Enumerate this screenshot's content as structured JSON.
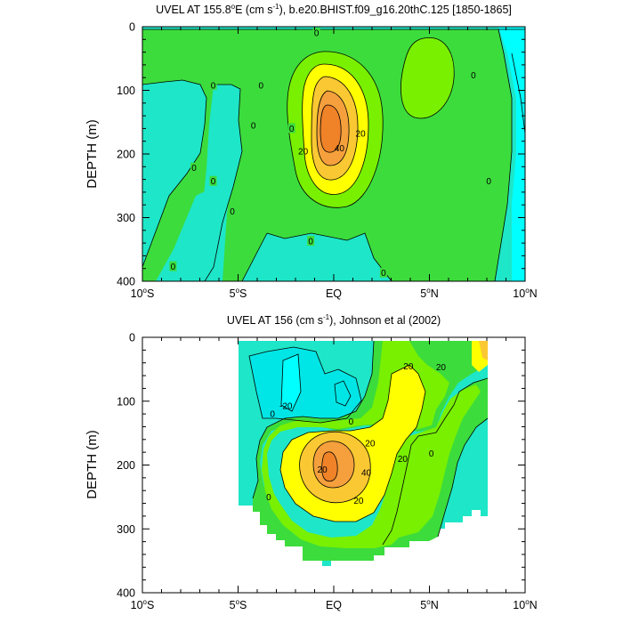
{
  "colors": {
    "lt_-20": "#00ffff",
    "-20_-10": "#00e6e6",
    "-10_0": "#1ee6c8",
    "0_10": "#3cdc3c",
    "10_20": "#78f000",
    "20_30": "#ffff00",
    "30_40": "#fac832",
    "40_50": "#f5a03c",
    "gt_50": "#f08228",
    "line": "#000000",
    "missing": "#ffffff"
  },
  "chart_data": [
    {
      "type": "contour",
      "title_prefix": "UVEL AT 155.8",
      "title_sup1": "o",
      "title_mid": "E (cm s",
      "title_sup2": "-1",
      "title_suffix": "), b.e20.BHIST.f09_g16.20thC.125 [1850-1865]",
      "ylabel": "DEPTH (m)",
      "xlim": [
        -10,
        10
      ],
      "ylim": [
        0,
        400
      ],
      "y_reversed": true,
      "xticks": [
        {
          "value": -10,
          "label": "10",
          "sup": "o",
          "hemi": "S"
        },
        {
          "value": -5,
          "label": "5",
          "sup": "o",
          "hemi": "S"
        },
        {
          "value": 0,
          "label": "EQ",
          "sup": "",
          "hemi": ""
        },
        {
          "value": 5,
          "label": "5",
          "sup": "o",
          "hemi": "N"
        },
        {
          "value": 10,
          "label": "10",
          "sup": "o",
          "hemi": "N"
        }
      ],
      "yticks": [
        {
          "value": 0,
          "label": "0"
        },
        {
          "value": 100,
          "label": "100"
        },
        {
          "value": 200,
          "label": "200"
        },
        {
          "value": 300,
          "label": "300"
        },
        {
          "value": 400,
          "label": "400"
        }
      ],
      "contour_levels": [
        -20,
        -10,
        0,
        10,
        20,
        30,
        40,
        50
      ],
      "contour_labels": [
        {
          "x": -0.9,
          "y": 10,
          "text": "0"
        },
        {
          "x": -6.3,
          "y": 92,
          "text": "0"
        },
        {
          "x": -3.8,
          "y": 92,
          "text": "0"
        },
        {
          "x": -4.2,
          "y": 155,
          "text": "0"
        },
        {
          "x": -2.2,
          "y": 160,
          "text": "0"
        },
        {
          "x": -7.3,
          "y": 222,
          "text": "0"
        },
        {
          "x": -6.3,
          "y": 243,
          "text": "0"
        },
        {
          "x": -5.3,
          "y": 290,
          "text": "0"
        },
        {
          "x": -1.2,
          "y": 337,
          "text": "0"
        },
        {
          "x": 2.6,
          "y": 387,
          "text": "0"
        },
        {
          "x": -8.4,
          "y": 377,
          "text": "0"
        },
        {
          "x": 7.3,
          "y": 76,
          "text": "0"
        },
        {
          "x": 8.1,
          "y": 243,
          "text": "0"
        },
        {
          "x": 1.4,
          "y": 168,
          "text": "20"
        },
        {
          "x": -1.6,
          "y": 196,
          "text": "20"
        },
        {
          "x": 0.3,
          "y": 191,
          "text": "40"
        }
      ]
    },
    {
      "type": "contour",
      "title_prefix": "UVEL AT 156 (cm s",
      "title_sup1": "",
      "title_mid": "",
      "title_sup2": "-1",
      "title_suffix": "), Johnson et al (2002)",
      "ylabel": "DEPTH (m)",
      "xlim": [
        -10,
        10
      ],
      "ylim": [
        0,
        400
      ],
      "y_reversed": true,
      "xticks": [
        {
          "value": -10,
          "label": "10",
          "sup": "o",
          "hemi": "S"
        },
        {
          "value": -5,
          "label": "5",
          "sup": "o",
          "hemi": "S"
        },
        {
          "value": 0,
          "label": "EQ",
          "sup": "",
          "hemi": ""
        },
        {
          "value": 5,
          "label": "5",
          "sup": "o",
          "hemi": "N"
        },
        {
          "value": 10,
          "label": "10",
          "sup": "o",
          "hemi": "N"
        }
      ],
      "yticks": [
        {
          "value": 0,
          "label": "0"
        },
        {
          "value": 100,
          "label": "100"
        },
        {
          "value": 200,
          "label": "200"
        },
        {
          "value": 300,
          "label": "300"
        },
        {
          "value": 400,
          "label": "400"
        }
      ],
      "data_extent_x": [
        -5,
        8
      ],
      "contour_levels": [
        -20,
        -10,
        0,
        10,
        20,
        30,
        40,
        50
      ],
      "contour_labels": [
        {
          "x": -2.5,
          "y": 107,
          "text": "-20"
        },
        {
          "x": -3.2,
          "y": 120,
          "text": "0"
        },
        {
          "x": 0.9,
          "y": 132,
          "text": "0"
        },
        {
          "x": 1.9,
          "y": 166,
          "text": "20"
        },
        {
          "x": 3.9,
          "y": 45,
          "text": "20"
        },
        {
          "x": 5.6,
          "y": 47,
          "text": "20"
        },
        {
          "x": 3.6,
          "y": 190,
          "text": "20"
        },
        {
          "x": 5.1,
          "y": 182,
          "text": "0"
        },
        {
          "x": -0.6,
          "y": 207,
          "text": "20"
        },
        {
          "x": 1.7,
          "y": 212,
          "text": "40"
        },
        {
          "x": 1.3,
          "y": 256,
          "text": "20"
        },
        {
          "x": -3.4,
          "y": 250,
          "text": "0"
        }
      ]
    }
  ]
}
